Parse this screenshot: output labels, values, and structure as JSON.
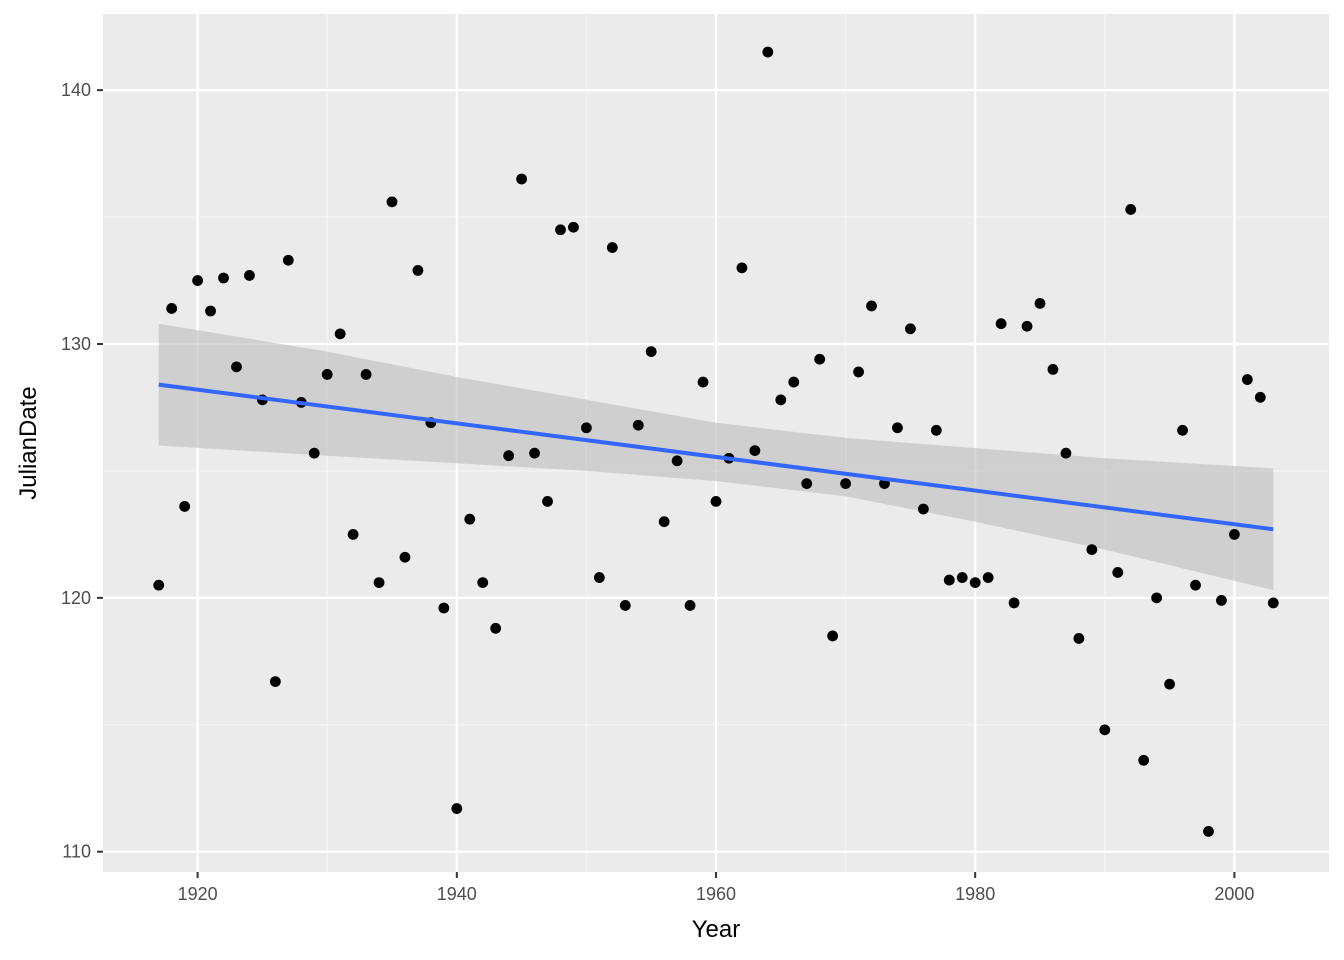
{
  "colors": {
    "panel_background": "#ebebeb",
    "grid_major": "#ffffff",
    "grid_minor": "#f7f7f7",
    "points": "#000000",
    "trend_line": "#3366ff",
    "confidence_band": "#bdbdbd",
    "tick_text": "#4d4d4d",
    "axis_title_text": "#000000"
  },
  "chart_data": {
    "type": "scatter",
    "title": "",
    "xlabel": "Year",
    "ylabel": "JulianDate",
    "xlim": [
      1912.7,
      2007.3
    ],
    "ylim": [
      109.2,
      143.0
    ],
    "x_ticks": [
      1920,
      1940,
      1960,
      1980,
      2000
    ],
    "y_ticks": [
      110,
      120,
      130,
      140
    ],
    "grid": true,
    "legend": "none",
    "points": [
      {
        "x": 1917,
        "y": 120.5
      },
      {
        "x": 1918,
        "y": 131.4
      },
      {
        "x": 1919,
        "y": 123.6
      },
      {
        "x": 1920,
        "y": 132.5
      },
      {
        "x": 1921,
        "y": 131.3
      },
      {
        "x": 1922,
        "y": 132.6
      },
      {
        "x": 1923,
        "y": 129.1
      },
      {
        "x": 1924,
        "y": 132.7
      },
      {
        "x": 1925,
        "y": 127.8
      },
      {
        "x": 1926,
        "y": 116.7
      },
      {
        "x": 1927,
        "y": 133.3
      },
      {
        "x": 1928,
        "y": 127.7
      },
      {
        "x": 1929,
        "y": 125.7
      },
      {
        "x": 1930,
        "y": 128.8
      },
      {
        "x": 1931,
        "y": 130.4
      },
      {
        "x": 1932,
        "y": 122.5
      },
      {
        "x": 1933,
        "y": 128.8
      },
      {
        "x": 1934,
        "y": 120.6
      },
      {
        "x": 1935,
        "y": 135.6
      },
      {
        "x": 1936,
        "y": 121.6
      },
      {
        "x": 1937,
        "y": 132.9
      },
      {
        "x": 1938,
        "y": 126.9
      },
      {
        "x": 1939,
        "y": 119.6
      },
      {
        "x": 1940,
        "y": 111.7
      },
      {
        "x": 1941,
        "y": 123.1
      },
      {
        "x": 1942,
        "y": 120.6
      },
      {
        "x": 1943,
        "y": 118.8
      },
      {
        "x": 1944,
        "y": 125.6
      },
      {
        "x": 1945,
        "y": 136.5
      },
      {
        "x": 1946,
        "y": 125.7
      },
      {
        "x": 1947,
        "y": 123.8
      },
      {
        "x": 1948,
        "y": 134.5
      },
      {
        "x": 1949,
        "y": 134.6
      },
      {
        "x": 1950,
        "y": 126.7
      },
      {
        "x": 1951,
        "y": 120.8
      },
      {
        "x": 1952,
        "y": 133.8
      },
      {
        "x": 1953,
        "y": 119.7
      },
      {
        "x": 1954,
        "y": 126.8
      },
      {
        "x": 1955,
        "y": 129.7
      },
      {
        "x": 1956,
        "y": 123.0
      },
      {
        "x": 1957,
        "y": 125.4
      },
      {
        "x": 1958,
        "y": 119.7
      },
      {
        "x": 1959,
        "y": 128.5
      },
      {
        "x": 1960,
        "y": 123.8
      },
      {
        "x": 1961,
        "y": 125.5
      },
      {
        "x": 1962,
        "y": 133.0
      },
      {
        "x": 1963,
        "y": 125.8
      },
      {
        "x": 1964,
        "y": 141.5
      },
      {
        "x": 1965,
        "y": 127.8
      },
      {
        "x": 1966,
        "y": 128.5
      },
      {
        "x": 1967,
        "y": 124.5
      },
      {
        "x": 1968,
        "y": 129.4
      },
      {
        "x": 1969,
        "y": 118.5
      },
      {
        "x": 1970,
        "y": 124.5
      },
      {
        "x": 1971,
        "y": 128.9
      },
      {
        "x": 1972,
        "y": 131.5
      },
      {
        "x": 1973,
        "y": 124.5
      },
      {
        "x": 1974,
        "y": 126.7
      },
      {
        "x": 1975,
        "y": 130.6
      },
      {
        "x": 1976,
        "y": 123.5
      },
      {
        "x": 1977,
        "y": 126.6
      },
      {
        "x": 1978,
        "y": 120.7
      },
      {
        "x": 1979,
        "y": 120.8
      },
      {
        "x": 1980,
        "y": 120.6
      },
      {
        "x": 1981,
        "y": 120.8
      },
      {
        "x": 1982,
        "y": 130.8
      },
      {
        "x": 1983,
        "y": 119.8
      },
      {
        "x": 1984,
        "y": 130.7
      },
      {
        "x": 1985,
        "y": 131.6
      },
      {
        "x": 1986,
        "y": 129.0
      },
      {
        "x": 1987,
        "y": 125.7
      },
      {
        "x": 1988,
        "y": 118.4
      },
      {
        "x": 1989,
        "y": 121.9
      },
      {
        "x": 1990,
        "y": 114.8
      },
      {
        "x": 1991,
        "y": 121.0
      },
      {
        "x": 1992,
        "y": 135.3
      },
      {
        "x": 1993,
        "y": 113.6
      },
      {
        "x": 1994,
        "y": 120.0
      },
      {
        "x": 1995,
        "y": 116.6
      },
      {
        "x": 1996,
        "y": 126.6
      },
      {
        "x": 1997,
        "y": 120.5
      },
      {
        "x": 1998,
        "y": 110.8
      },
      {
        "x": 1999,
        "y": 119.9
      },
      {
        "x": 2000,
        "y": 122.5
      },
      {
        "x": 2001,
        "y": 128.6
      },
      {
        "x": 2002,
        "y": 127.9
      },
      {
        "x": 2003,
        "y": 119.8
      }
    ],
    "trend": {
      "method": "linear",
      "line": [
        {
          "x": 1917,
          "y": 128.4
        },
        {
          "x": 2003,
          "y": 122.7
        }
      ],
      "confidence_band": {
        "x": [
          1917,
          1930,
          1940,
          1950,
          1960,
          1970,
          1980,
          1990,
          2003
        ],
        "lower": [
          126.0,
          125.6,
          125.3,
          125.0,
          124.6,
          124.0,
          123.0,
          121.9,
          120.3
        ],
        "upper": [
          130.8,
          129.7,
          128.7,
          127.8,
          126.9,
          126.3,
          125.9,
          125.5,
          125.1
        ]
      }
    }
  }
}
